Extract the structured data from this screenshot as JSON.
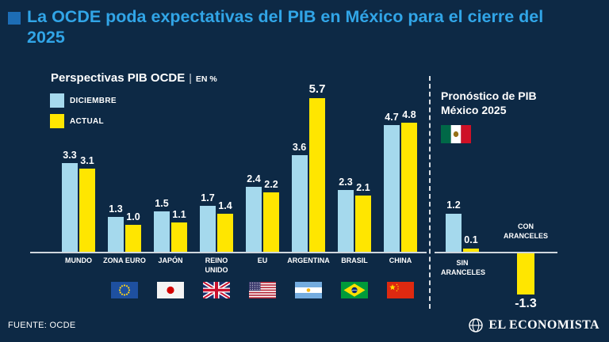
{
  "header": {
    "title": "La OCDE poda expectativas del PIB en México para el cierre del 2025",
    "accent_color": "#31a5e7"
  },
  "chart_data": [
    {
      "type": "bar",
      "title": "Perspectivas PIB OCDE",
      "title_separator": "|",
      "unit_label": "EN %",
      "categories": [
        "MUNDO",
        "ZONA EURO",
        "JAPÓN",
        "REINO UNIDO",
        "EU",
        "ARGENTINA",
        "BRASIL",
        "CHINA"
      ],
      "category_flags": [
        null,
        "flag-eu-icon",
        "flag-japan-icon",
        "flag-uk-icon",
        "flag-usa-icon",
        "flag-argentina-icon",
        "flag-brazil-icon",
        "flag-china-icon"
      ],
      "series": [
        {
          "name": "DICIEMBRE",
          "color": "#a5d9ed",
          "values": [
            3.3,
            1.3,
            1.5,
            1.7,
            2.4,
            3.6,
            2.3,
            4.7
          ]
        },
        {
          "name": "ACTUAL",
          "color": "#ffe600",
          "values": [
            3.1,
            1.0,
            1.1,
            1.4,
            2.2,
            5.7,
            2.1,
            4.8
          ]
        }
      ],
      "ylim": [
        0,
        6
      ],
      "grid": false,
      "legend_position": "top-left",
      "value_labels": true
    },
    {
      "type": "bar",
      "title": "Pronóstico de PIB México 2025",
      "flag": "flag-mexico-icon",
      "categories": [
        "SIN ARANCELES",
        "CON ARANCELES"
      ],
      "series": [
        {
          "name": "DICIEMBRE",
          "color": "#a5d9ed",
          "values": [
            1.2,
            null
          ]
        },
        {
          "name": "ACTUAL",
          "color": "#ffe600",
          "values": [
            0.1,
            -1.3
          ]
        }
      ],
      "ylim": [
        -1.5,
        1.5
      ],
      "grid": false,
      "value_labels": true
    }
  ],
  "footer": {
    "source": "FUENTE: OCDE",
    "brand": "EL ECONOMISTA"
  }
}
